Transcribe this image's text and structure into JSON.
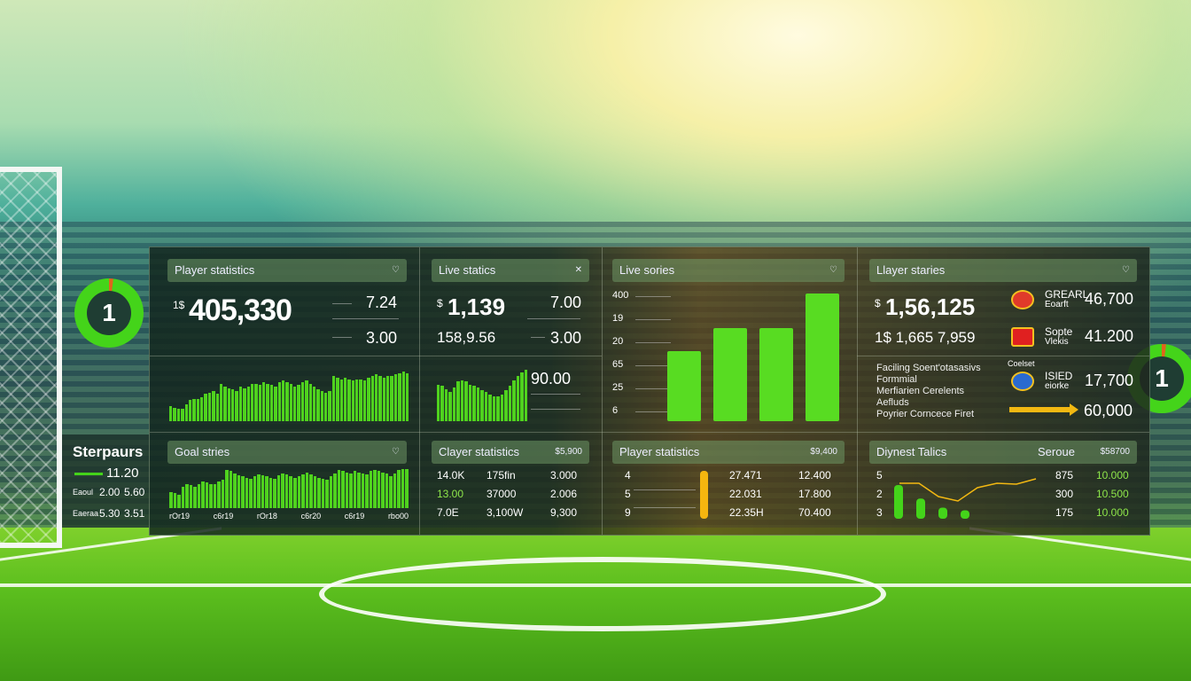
{
  "side_left": {
    "badge": "1",
    "title": "Sterpaurs",
    "value": "11.20",
    "row1": [
      "Eaoul",
      "2.00",
      "5.60"
    ],
    "row2": [
      "Eaeraa",
      "5.30",
      "3.51"
    ]
  },
  "side_right": {
    "badge": "1"
  },
  "cards": {
    "player_statistics": {
      "title": "Player statistics",
      "icon": "heart-icon",
      "big_prefix": "1$",
      "big": "405,330",
      "v1": "7.24",
      "v2": "3.00",
      "spark": [
        20,
        18,
        16,
        16,
        22,
        28,
        30,
        30,
        32,
        36,
        38,
        40,
        36,
        50,
        46,
        44,
        42,
        40,
        46,
        44,
        46,
        50,
        50,
        48,
        52,
        50,
        48,
        46,
        52,
        54,
        52,
        50,
        46,
        48,
        52,
        54,
        50,
        46,
        42,
        40,
        38,
        40,
        60,
        58,
        56,
        58,
        55,
        54,
        56,
        56,
        54,
        58,
        60,
        62,
        60,
        58,
        60,
        60,
        62,
        64,
        66,
        64
      ]
    },
    "live_statics": {
      "title": "Live statics",
      "icon": "close-icon",
      "big_prefix": "$",
      "big": "1,139",
      "v1": "7.00",
      "sub": "158,9.56",
      "v2": "3.00",
      "v3": "90.00",
      "spark": [
        50,
        48,
        44,
        40,
        46,
        54,
        56,
        54,
        50,
        48,
        46,
        42,
        40,
        36,
        34,
        34,
        36,
        42,
        48,
        56,
        62,
        66,
        70
      ]
    },
    "live_sories": {
      "title": "Live sories",
      "icon": "heart-icon",
      "y_labels": [
        "400",
        "19",
        "20",
        "65",
        "25",
        "6"
      ],
      "bar_levels": [
        0.55,
        0.73,
        0.73,
        1.0
      ]
    },
    "layer_staries": {
      "title": "Llayer staries",
      "icon": "heart-icon",
      "big_prefix": "$",
      "big": "1,56,125",
      "sub": "1$ 1,665  7,959",
      "teams": [
        {
          "name": "GREARL",
          "sub": "Eoarft",
          "value": "46,700",
          "color": "#e03a2a"
        },
        {
          "name": "Sopte",
          "sub": "Vlekis",
          "value": "41.200",
          "color": "#e02020"
        },
        {
          "name": "ISIED",
          "sub": "eiorke",
          "value": "17,700",
          "color": "#2a6ad0",
          "label": "Coelset"
        }
      ],
      "notes": [
        "Faciling Soent'otasasivs",
        "Formmial",
        "Merfiarien     Cerelents",
        "Aefluds",
        "Poyrier Corncece Firet"
      ],
      "arrow_value": "60,000",
      "arrow_color": "#f2b812"
    },
    "goal_stries": {
      "title": "Goal stries",
      "icon": "heart-icon",
      "spark": [
        30,
        28,
        26,
        40,
        46,
        44,
        40,
        46,
        50,
        48,
        46,
        46,
        50,
        54,
        72,
        70,
        66,
        62,
        60,
        58,
        56,
        60,
        64,
        62,
        60,
        58,
        56,
        62,
        66,
        64,
        60,
        58,
        60,
        64,
        68,
        64,
        60,
        58,
        56,
        54,
        60,
        66,
        72,
        70,
        68,
        66,
        70,
        68,
        66,
        64,
        70,
        72,
        70,
        68,
        66,
        60,
        66,
        72,
        74,
        74
      ],
      "x_labels": [
        "rOr19",
        "c6r19",
        "rOr18",
        "c6r20",
        "c6r19",
        "rbo00"
      ]
    },
    "clayer_statistics": {
      "title": "Clayer statistics",
      "value": "$5,900",
      "rows": [
        [
          "14.0K",
          "175fin",
          "3.000"
        ],
        [
          "13.00",
          "37000",
          "2.006"
        ],
        [
          "7.0E",
          "3,100W",
          "9,300"
        ]
      ]
    },
    "player_statistics_2": {
      "title": "Player statistics",
      "value": "$9,400",
      "rows": [
        [
          "4",
          "27.471",
          "12.400"
        ],
        [
          "5",
          "22.031",
          "17.800"
        ],
        [
          "9",
          "22.35H",
          "70.400"
        ]
      ],
      "indicator_color": "#f5b60f"
    },
    "diynest_talics": {
      "title": "Diynest Talics",
      "col": "Seroue",
      "value": "$58700",
      "y_labels": [
        "5",
        "2",
        "3"
      ],
      "rows": [
        [
          "875",
          "10.000"
        ],
        [
          "300",
          "10.500"
        ],
        [
          "175",
          "10.000"
        ]
      ],
      "bar_levels": [
        1.0,
        0.6,
        0.33,
        0.25
      ],
      "line": [
        0.8,
        0.8,
        0.5,
        0.4,
        0.7,
        0.8,
        0.78,
        0.9
      ]
    }
  }
}
